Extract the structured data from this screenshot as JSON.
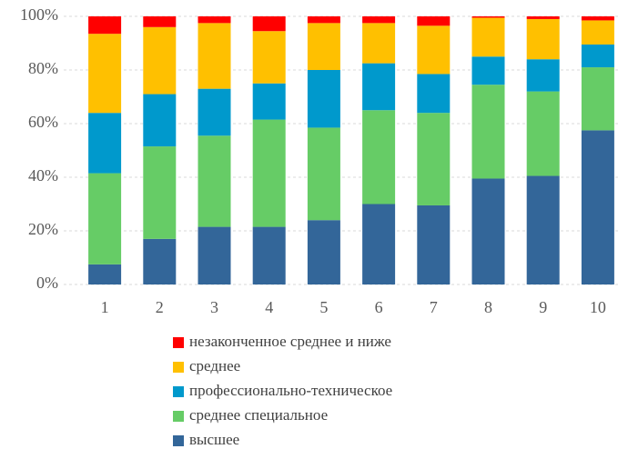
{
  "chart_data": {
    "type": "stacked_bar",
    "categories": [
      "1",
      "2",
      "3",
      "4",
      "5",
      "6",
      "7",
      "8",
      "9",
      "10"
    ],
    "series": [
      {
        "name": "высшее",
        "color": "#336699",
        "values": [
          7.5,
          17,
          21.5,
          21.5,
          24,
          30,
          29.5,
          39.5,
          40.5,
          57.5
        ]
      },
      {
        "name": "среднее специальное",
        "color": "#66cc66",
        "values": [
          34,
          34.5,
          34,
          40,
          34.5,
          35,
          34.5,
          35,
          31.5,
          23.5
        ]
      },
      {
        "name": "профессионально-техническое",
        "color": "#0099cc",
        "values": [
          22.5,
          19.5,
          17.5,
          13.5,
          21.5,
          17.5,
          14.5,
          10.5,
          12,
          8.5
        ]
      },
      {
        "name": "среднее",
        "color": "#ffc000",
        "values": [
          29.5,
          25,
          24.5,
          19.5,
          17.5,
          15,
          18,
          14.5,
          15,
          9
        ]
      },
      {
        "name": "незаконченное среднее и ниже",
        "color": "#ff0000",
        "values": [
          6.5,
          4,
          2.5,
          5.5,
          2.5,
          2.5,
          3.5,
          0.5,
          1,
          1.5
        ]
      }
    ],
    "ylim": [
      0,
      100
    ],
    "yticks": [
      {
        "value": 0,
        "label": "0%"
      },
      {
        "value": 20,
        "label": "20%"
      },
      {
        "value": 40,
        "label": "40%"
      },
      {
        "value": 60,
        "label": "60%"
      },
      {
        "value": 80,
        "label": "80%"
      },
      {
        "value": 100,
        "label": "100%"
      }
    ],
    "grid": true
  }
}
